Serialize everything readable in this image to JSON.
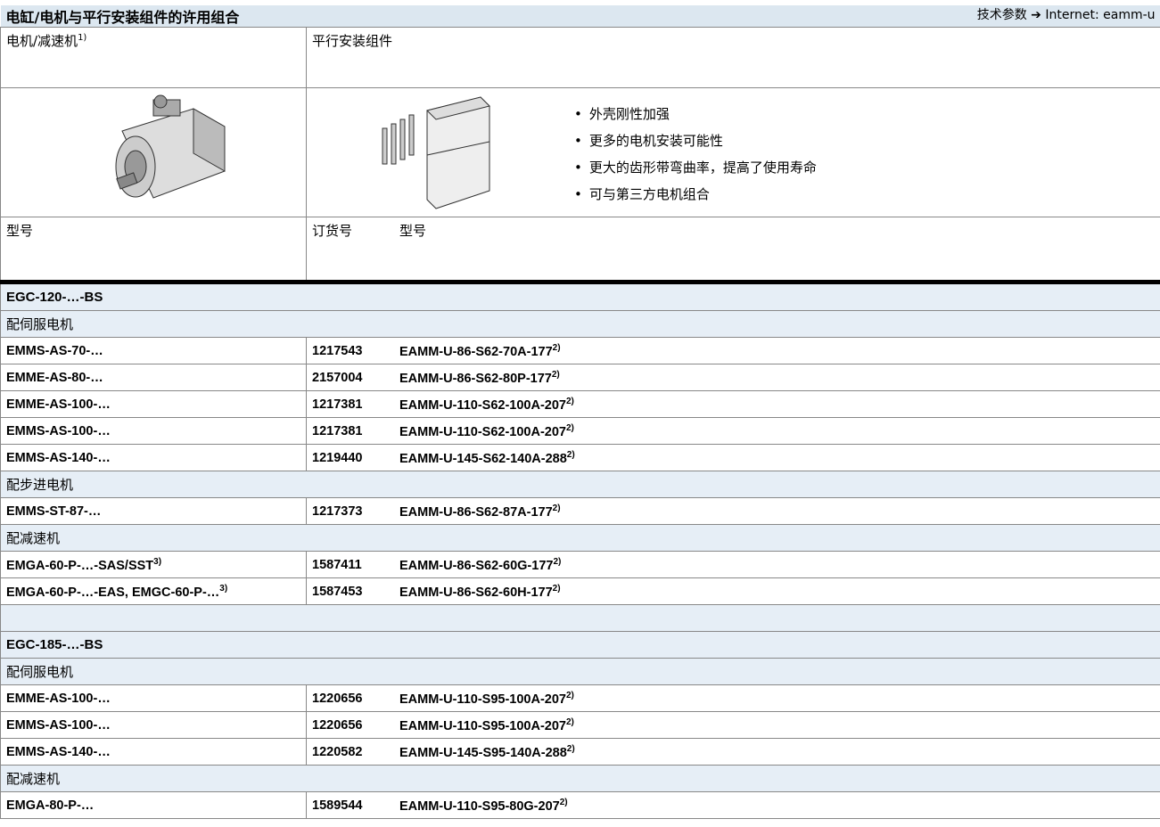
{
  "header": {
    "title": "电缸/电机与平行安装组件的许用组合",
    "reference": "技术参数 ➔ Internet: eamm-u"
  },
  "columns": {
    "motor": "电机/减速机",
    "motor_note": "1)",
    "kit": "平行安装组件"
  },
  "features": [
    "外壳刚性加强",
    "更多的电机安装可能性",
    "更大的齿形带弯曲率，提高了使用寿命",
    "可与第三方电机组合"
  ],
  "subheader": {
    "type": "型号",
    "part_no": "订货号",
    "kit_type": "型号"
  },
  "sections": [
    {
      "title": "EGC-120-…-BS",
      "groups": [
        {
          "title": "配伺服电机",
          "rows": [
            {
              "motor": "EMMS-AS-70-…",
              "part_no": "1217543",
              "kit_type": "EAMM-U-86-S62-70A-177",
              "kit_note": "2)"
            },
            {
              "motor": "EMME-AS-80-…",
              "part_no": "2157004",
              "kit_type": "EAMM-U-86-S62-80P-177",
              "kit_note": "2)"
            },
            {
              "motor": "EMME-AS-100-…",
              "part_no": "1217381",
              "kit_type": "EAMM-U-110-S62-100A-207",
              "kit_note": "2)"
            },
            {
              "motor": "EMMS-AS-100-…",
              "part_no": "1217381",
              "kit_type": "EAMM-U-110-S62-100A-207",
              "kit_note": "2)"
            },
            {
              "motor": "EMMS-AS-140-…",
              "part_no": "1219440",
              "kit_type": "EAMM-U-145-S62-140A-288",
              "kit_note": "2)"
            }
          ]
        },
        {
          "title": "配步进电机",
          "rows": [
            {
              "motor": "EMMS-ST-87-…",
              "part_no": "1217373",
              "kit_type": "EAMM-U-86-S62-87A-177",
              "kit_note": "2)"
            }
          ]
        },
        {
          "title": "配减速机",
          "rows": [
            {
              "motor": "EMGA-60-P-…-SAS/SST",
              "motor_note": "3)",
              "part_no": "1587411",
              "kit_type": "EAMM-U-86-S62-60G-177",
              "kit_note": "2)"
            },
            {
              "motor": "EMGA-60-P-…-EAS, EMGC-60-P-…",
              "motor_note": "3)",
              "part_no": "1587453",
              "kit_type": "EAMM-U-86-S62-60H-177",
              "kit_note": "2)"
            }
          ]
        }
      ]
    },
    {
      "title": "EGC-185-…-BS",
      "groups": [
        {
          "title": "配伺服电机",
          "rows": [
            {
              "motor": "EMME-AS-100-…",
              "part_no": "1220656",
              "kit_type": "EAMM-U-110-S95-100A-207",
              "kit_note": "2)"
            },
            {
              "motor": "EMMS-AS-100-…",
              "part_no": "1220656",
              "kit_type": "EAMM-U-110-S95-100A-207",
              "kit_note": "2)"
            },
            {
              "motor": "EMMS-AS-140-…",
              "part_no": "1220582",
              "kit_type": "EAMM-U-145-S95-140A-288",
              "kit_note": "2)"
            }
          ]
        },
        {
          "title": "配减速机",
          "rows": [
            {
              "motor": "EMGA-80-P-…",
              "part_no": "1589544",
              "kit_type": "EAMM-U-110-S95-80G-207",
              "kit_note": "2)"
            }
          ]
        }
      ]
    }
  ]
}
